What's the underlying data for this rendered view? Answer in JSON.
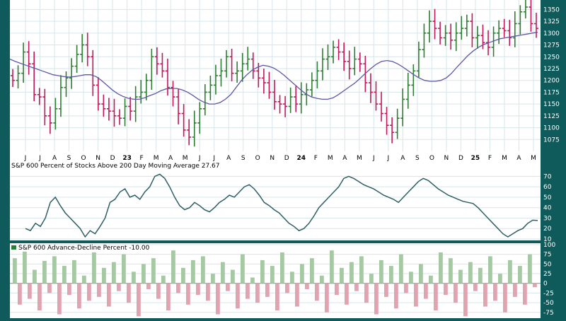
{
  "chart_data": [
    {
      "type": "ohlc",
      "title": "",
      "y_axis_ticks": [
        1075,
        1100,
        1125,
        1150,
        1175,
        1200,
        1225,
        1250,
        1275,
        1300,
        1325,
        1350
      ],
      "ylim": [
        1050,
        1370
      ],
      "x_month_labels": [
        "J",
        "J",
        "A",
        "S",
        "O",
        "N",
        "D",
        "23",
        "F",
        "M",
        "A",
        "M",
        "J",
        "J",
        "A",
        "S",
        "O",
        "N",
        "D",
        "24",
        "F",
        "M",
        "A",
        "M",
        "J",
        "J",
        "A",
        "S",
        "O",
        "N",
        "D",
        "25",
        "F",
        "M",
        "A",
        "M"
      ],
      "series": [
        {
          "name": "price",
          "color_up": "#2e7d32",
          "color_down": "#c2185b",
          "close": [
            1200,
            1215,
            1260,
            1235,
            1170,
            1165,
            1125,
            1110,
            1140,
            1185,
            1205,
            1230,
            1255,
            1275,
            1250,
            1190,
            1150,
            1140,
            1135,
            1125,
            1120,
            1145,
            1135,
            1165,
            1175,
            1200,
            1250,
            1235,
            1220,
            1185,
            1165,
            1130,
            1095,
            1080,
            1110,
            1140,
            1175,
            1190,
            1210,
            1220,
            1250,
            1215,
            1220,
            1235,
            1245,
            1220,
            1205,
            1195,
            1175,
            1155,
            1150,
            1145,
            1165,
            1150,
            1170,
            1180,
            1200,
            1220,
            1245,
            1250,
            1270,
            1260,
            1240,
            1225,
            1245,
            1235,
            1195,
            1175,
            1150,
            1130,
            1105,
            1090,
            1120,
            1160,
            1190,
            1220,
            1265,
            1300,
            1325,
            1310,
            1290,
            1300,
            1285,
            1300,
            1310,
            1325,
            1290,
            1295,
            1280,
            1270,
            1300,
            1310,
            1305,
            1290,
            1320,
            1345,
            1355,
            1320,
            1310
          ],
          "low_window": [
            1050,
            1370
          ]
        },
        {
          "name": "moving-average",
          "color": "#5d57a7",
          "values": [
            1245,
            1240,
            1236,
            1232,
            1228,
            1224,
            1220,
            1216,
            1212,
            1210,
            1208,
            1207,
            1208,
            1210,
            1212,
            1212,
            1208,
            1200,
            1190,
            1180,
            1172,
            1166,
            1162,
            1160,
            1160,
            1163,
            1168,
            1172,
            1178,
            1182,
            1183,
            1183,
            1180,
            1175,
            1168,
            1160,
            1154,
            1150,
            1150,
            1153,
            1160,
            1170,
            1185,
            1200,
            1212,
            1222,
            1228,
            1232,
            1230,
            1226,
            1219,
            1210,
            1200,
            1190,
            1180,
            1171,
            1165,
            1162,
            1160,
            1160,
            1163,
            1170,
            1178,
            1186,
            1194,
            1204,
            1215,
            1225,
            1234,
            1240,
            1242,
            1240,
            1235,
            1228,
            1220,
            1212,
            1205,
            1200,
            1198,
            1198,
            1200,
            1205,
            1215,
            1228,
            1240,
            1252,
            1262,
            1270,
            1276,
            1280,
            1284,
            1288,
            1290,
            1292,
            1294,
            1296,
            1298,
            1300,
            1302
          ]
        }
      ]
    },
    {
      "type": "line",
      "title": "S&P 600 Percent of Stocks Above 200 Day Moving Average 27.67",
      "legend_label": "S&P 600 Percent of Stocks Above 200 Day Moving Average 27.67",
      "y_axis_ticks": [
        10,
        20,
        30,
        40,
        50,
        60,
        70
      ],
      "ylim": [
        10,
        75
      ],
      "series": [
        {
          "name": "S&P 600 Percent of Stocks Above 200 Day Moving Average",
          "values": [
            20,
            18,
            25,
            22,
            30,
            45,
            50,
            42,
            35,
            30,
            25,
            20,
            12,
            18,
            15,
            22,
            30,
            45,
            48,
            55,
            58,
            50,
            52,
            48,
            55,
            60,
            70,
            72,
            68,
            60,
            50,
            42,
            38,
            40,
            45,
            42,
            38,
            36,
            40,
            45,
            48,
            52,
            50,
            55,
            60,
            62,
            58,
            52,
            45,
            42,
            38,
            35,
            30,
            25,
            22,
            18,
            20,
            25,
            32,
            40,
            45,
            50,
            55,
            60,
            68,
            70,
            68,
            65,
            62,
            60,
            58,
            55,
            52,
            50,
            48,
            45,
            50,
            55,
            60,
            65,
            68,
            66,
            62,
            58,
            55,
            52,
            50,
            48,
            46,
            45,
            44,
            40,
            35,
            30,
            25,
            20,
            15,
            12,
            15,
            18,
            20,
            25,
            28,
            27.67
          ]
        }
      ]
    },
    {
      "type": "bar",
      "title": "S&P 600 Advance-Decline Percent -10.00",
      "legend_label": "S&P 600 Advance-Decline Percent -10.00",
      "y_axis_ticks": [
        -75,
        -50,
        -25,
        0,
        25,
        50,
        75,
        100
      ],
      "ylim": [
        -90,
        100
      ],
      "series": [
        {
          "name": "S&P 600 Advance-Decline Percent",
          "values": [
            65,
            -55,
            82,
            -40,
            35,
            -70,
            58,
            -25,
            70,
            -80,
            45,
            -30,
            60,
            -65,
            20,
            -45,
            80,
            -35,
            40,
            -60,
            55,
            -20,
            75,
            -50,
            30,
            -85,
            50,
            -15,
            65,
            -40,
            20,
            -70,
            85,
            -25,
            40,
            -55,
            60,
            -30,
            70,
            -45,
            25,
            -80,
            55,
            -20,
            35,
            -65,
            75,
            -40,
            15,
            -50,
            60,
            -35,
            45,
            -70,
            80,
            -25,
            30,
            -60,
            50,
            -15,
            65,
            -45,
            20,
            -75,
            85,
            -30,
            40,
            -55,
            55,
            -20,
            70,
            -50,
            25,
            -80,
            60,
            -35,
            45,
            -65,
            75,
            -25,
            30,
            -60,
            50,
            -40,
            20,
            -70,
            80,
            -30,
            65,
            -50,
            35,
            -85,
            55,
            -20,
            40,
            -60,
            70,
            -45,
            25,
            -75,
            60,
            -35,
            45,
            -55,
            75,
            -10
          ]
        }
      ],
      "colors": {
        "positive": "#a5c9a3",
        "negative": "#e0a3b0"
      }
    }
  ],
  "panels": {
    "ma_panel_label": "S&P 600 Percent of Stocks Above 200 Day Moving Average 27.67",
    "ad_panel_label": "S&P 600 Advance-Decline Percent -10.00"
  },
  "colors": {
    "frame": "#0f5b5b",
    "plot_bg": "#ffffff",
    "grid": "#d7e6ea",
    "ma_line": "#2f5f63",
    "axis_text": "#ffffff"
  }
}
